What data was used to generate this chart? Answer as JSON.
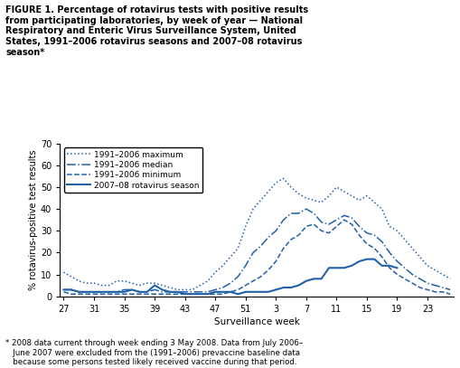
{
  "title_lines": [
    "FIGURE 1. Percentage of rotavirus tests with positive results",
    "from participating laboratories, by week of year — National",
    "Respiratory and Enteric Virus Surveillance System, United",
    "States, 1991–2006 rotavirus seasons and 2007–08 rotavirus",
    "season*"
  ],
  "footnote": "* 2008 data current through week ending 3 May 2008. Data from July 2006–\n   June 2007 were excluded from the (1991–2006) prevaccine baseline data\n   because some persons tested likely received vaccine during that period.",
  "xlabel": "Surveillance week",
  "ylabel": "% rotavirus-positive test results",
  "ylim": [
    0,
    70
  ],
  "yticks": [
    0,
    10,
    20,
    30,
    40,
    50,
    60,
    70
  ],
  "xtick_labels": [
    "27",
    "31",
    "35",
    "39",
    "43",
    "47",
    "51",
    "3",
    "7",
    "11",
    "15",
    "19",
    "23",
    ""
  ],
  "line_color": "#2060a8",
  "weeks_x": [
    0,
    1,
    2,
    3,
    4,
    5,
    6,
    7,
    8,
    9,
    10,
    11,
    12,
    13,
    14,
    15,
    16,
    17,
    18,
    19,
    20,
    21,
    22,
    23,
    24,
    25,
    26,
    27,
    28,
    29,
    30,
    31,
    32,
    33,
    34,
    35,
    36,
    37,
    38,
    39,
    40,
    41,
    42,
    43,
    44,
    45,
    46,
    47,
    48,
    49,
    50,
    51
  ],
  "maximum": [
    11,
    9,
    7,
    6,
    6,
    5,
    5,
    7,
    7,
    6,
    5,
    6,
    6,
    5,
    4,
    3,
    3,
    3,
    5,
    7,
    11,
    14,
    18,
    22,
    32,
    40,
    44,
    48,
    52,
    54,
    50,
    47,
    45,
    44,
    43,
    46,
    50,
    48,
    46,
    44,
    46,
    43,
    40,
    32,
    30,
    26,
    22,
    18,
    14,
    12,
    10,
    8
  ],
  "median": [
    3,
    3,
    2,
    2,
    2,
    2,
    2,
    2,
    3,
    3,
    2,
    2,
    3,
    2,
    2,
    2,
    2,
    2,
    2,
    2,
    3,
    4,
    6,
    9,
    14,
    20,
    23,
    27,
    30,
    35,
    38,
    38,
    40,
    38,
    34,
    33,
    35,
    37,
    36,
    32,
    29,
    28,
    25,
    20,
    16,
    13,
    10,
    8,
    6,
    5,
    4,
    3
  ],
  "minimum": [
    2,
    1,
    1,
    1,
    1,
    1,
    1,
    1,
    1,
    1,
    1,
    1,
    1,
    1,
    1,
    1,
    1,
    1,
    1,
    1,
    1,
    1,
    2,
    3,
    5,
    7,
    9,
    12,
    16,
    22,
    26,
    28,
    32,
    33,
    30,
    29,
    32,
    35,
    33,
    28,
    24,
    22,
    18,
    13,
    10,
    8,
    6,
    4,
    3,
    2,
    2,
    1
  ],
  "season_2007_08": [
    3,
    3,
    2,
    2,
    2,
    2,
    2,
    2,
    2,
    3,
    2,
    2,
    5,
    3,
    2,
    2,
    1,
    1,
    1,
    1,
    2,
    2,
    2,
    1,
    2,
    2,
    2,
    2,
    3,
    4,
    4,
    5,
    7,
    8,
    8,
    13,
    13,
    13,
    14,
    16,
    17,
    17,
    14,
    14,
    13,
    null,
    null,
    null,
    null,
    null,
    null,
    null
  ],
  "legend_labels": [
    "1991–2006 maximum",
    "1991–2006 median",
    "1991–2006 minimum",
    "2007–08 rotavirus season"
  ]
}
